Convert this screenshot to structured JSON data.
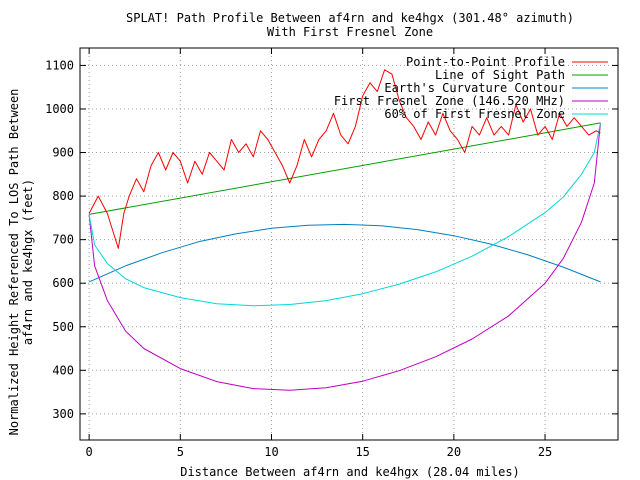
{
  "chart_data": {
    "type": "line",
    "title_line1": "SPLAT! Path Profile Between af4rn and ke4hgx (301.48° azimuth)",
    "title_line2": "With First Fresnel Zone",
    "xlabel": "Distance Between af4rn and ke4hgx (28.04 miles)",
    "ylabel_line1": "Normalized Height Referenced To LOS Path Between",
    "ylabel_line2": "af4rn and ke4hgx (feet)",
    "xlim": [
      -0.5,
      29
    ],
    "ylim": [
      240,
      1140
    ],
    "x_ticks": [
      0,
      5,
      10,
      15,
      20,
      25
    ],
    "y_ticks": [
      300,
      400,
      500,
      600,
      700,
      800,
      900,
      1000,
      1100
    ],
    "grid": true,
    "legend_position": "top-right",
    "series": [
      {
        "name": "Point-to-Point Profile",
        "color": "#ff0000",
        "x": [
          0,
          0.5,
          1.0,
          1.3,
          1.6,
          1.9,
          2.2,
          2.6,
          3.0,
          3.4,
          3.8,
          4.2,
          4.6,
          5.0,
          5.4,
          5.8,
          6.2,
          6.6,
          7.0,
          7.4,
          7.8,
          8.2,
          8.6,
          9.0,
          9.4,
          9.8,
          10.2,
          10.6,
          11.0,
          11.4,
          11.8,
          12.2,
          12.6,
          13.0,
          13.4,
          13.8,
          14.2,
          14.6,
          15.0,
          15.4,
          15.8,
          16.2,
          16.6,
          17.0,
          17.4,
          17.8,
          18.2,
          18.6,
          19.0,
          19.4,
          19.8,
          20.2,
          20.6,
          21.0,
          21.4,
          21.8,
          22.2,
          22.6,
          23.0,
          23.4,
          23.8,
          24.2,
          24.6,
          25.0,
          25.4,
          25.8,
          26.2,
          26.6,
          27.0,
          27.4,
          27.8,
          28.04
        ],
        "y": [
          760,
          800,
          760,
          720,
          680,
          760,
          800,
          840,
          810,
          870,
          900,
          860,
          900,
          880,
          830,
          880,
          850,
          900,
          880,
          860,
          930,
          900,
          920,
          890,
          950,
          930,
          900,
          870,
          830,
          870,
          930,
          890,
          930,
          950,
          990,
          940,
          920,
          960,
          1030,
          1060,
          1040,
          1090,
          1080,
          1020,
          980,
          960,
          930,
          970,
          940,
          990,
          950,
          930,
          900,
          960,
          940,
          980,
          940,
          960,
          940,
          1010,
          970,
          1000,
          940,
          960,
          930,
          990,
          960,
          980,
          960,
          940,
          950,
          945
        ]
      },
      {
        "name": "Line of Sight Path",
        "color": "#00a000",
        "x": [
          0,
          28.04
        ],
        "y": [
          758,
          968
        ]
      },
      {
        "name": "Earth's Curvature Contour",
        "color": "#0080c0",
        "x": [
          0,
          2,
          4,
          6,
          8,
          10,
          12,
          14,
          16,
          18,
          20,
          22,
          24,
          26,
          28.04
        ],
        "y": [
          603,
          640,
          670,
          695,
          713,
          726,
          733,
          735,
          732,
          723,
          709,
          690,
          666,
          637,
          603
        ]
      },
      {
        "name": "First Fresnel Zone (146.520 MHz)",
        "color": "#c000c0",
        "x": [
          0,
          0.3,
          1,
          2,
          3,
          5,
          7,
          9,
          11,
          13,
          15,
          17,
          19,
          21,
          23,
          25,
          26,
          27,
          27.7,
          28.04
        ],
        "y": [
          758,
          640,
          560,
          490,
          450,
          404,
          374,
          358,
          354,
          360,
          375,
          399,
          431,
          472,
          525,
          600,
          657,
          740,
          830,
          968
        ]
      },
      {
        "name": "60% of First Fresnel Zone",
        "color": "#00d8d8",
        "x": [
          0,
          0.3,
          1,
          2,
          3,
          5,
          7,
          9,
          11,
          13,
          15,
          17,
          19,
          21,
          23,
          25,
          26,
          27,
          27.7,
          28.04
        ],
        "y": [
          758,
          688,
          645,
          610,
          590,
          567,
          553,
          548,
          551,
          560,
          576,
          598,
          626,
          662,
          707,
          762,
          798,
          850,
          900,
          968
        ]
      }
    ]
  }
}
